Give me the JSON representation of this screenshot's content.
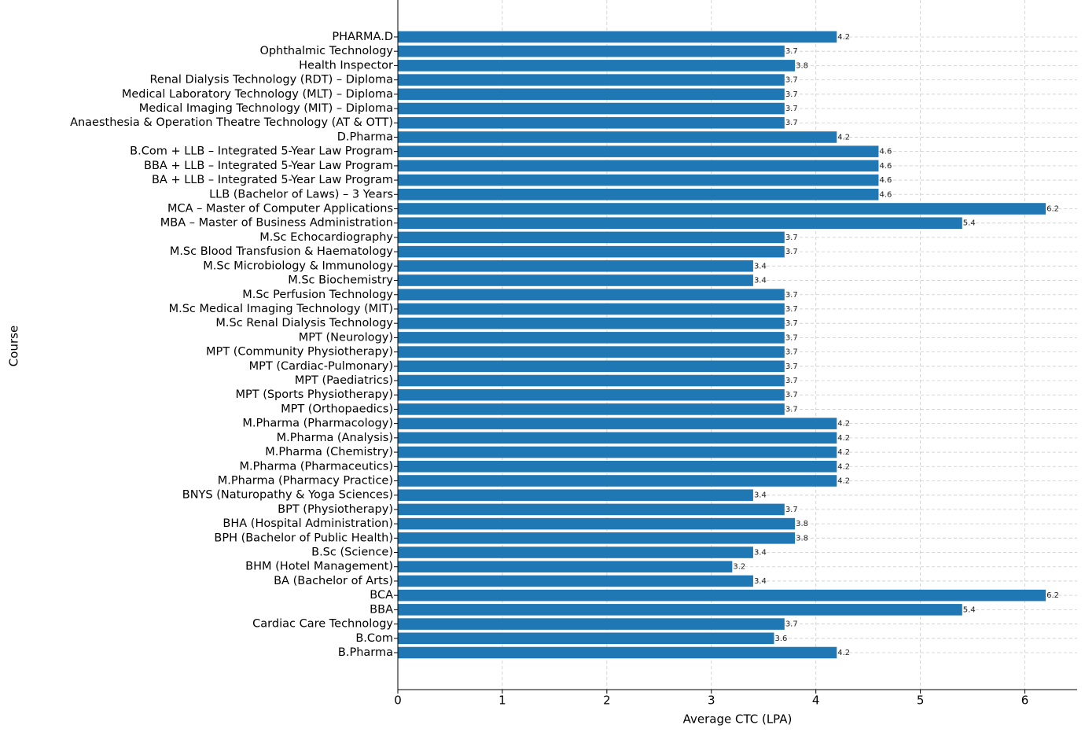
{
  "chart_data": {
    "type": "barh",
    "xlabel": "Average CTC (LPA)",
    "ylabel": "Course",
    "color": "#1f77b4",
    "grid": true,
    "xlim": [
      0,
      6.5
    ],
    "xticks": [
      0,
      1,
      2,
      3,
      4,
      5,
      6
    ],
    "categories": [
      "B.Pharma",
      "B.Com",
      "Cardiac Care Technology",
      "BBA",
      "BCA",
      "BA (Bachelor of Arts)",
      "BHM (Hotel Management)",
      "B.Sc (Science)",
      "BPH (Bachelor of Public Health)",
      "BHA (Hospital Administration)",
      "BPT (Physiotherapy)",
      "BNYS (Naturopathy & Yoga Sciences)",
      "M.Pharma (Pharmacy Practice)",
      "M.Pharma (Pharmaceutics)",
      "M.Pharma (Chemistry)",
      "M.Pharma (Analysis)",
      "M.Pharma (Pharmacology)",
      "MPT (Orthopaedics)",
      "MPT (Sports Physiotherapy)",
      "MPT (Paediatrics)",
      "MPT (Cardiac-Pulmonary)",
      "MPT (Community Physiotherapy)",
      "MPT (Neurology)",
      "M.Sc Renal Dialysis Technology",
      "M.Sc Medical Imaging Technology (MIT)",
      "M.Sc Perfusion Technology",
      "M.Sc Biochemistry",
      "M.Sc Microbiology & Immunology",
      "M.Sc Blood Transfusion & Haematology",
      "M.Sc Echocardiography",
      "MBA – Master of Business Administration",
      "MCA – Master of Computer Applications",
      "LLB (Bachelor of Laws) – 3 Years",
      "BA + LLB – Integrated 5-Year Law Program",
      "BBA + LLB – Integrated 5-Year Law Program",
      "B.Com + LLB – Integrated 5-Year Law Program",
      "D.Pharma",
      "Anaesthesia & Operation Theatre Technology (AT & OTT)",
      "Medical Imaging Technology (MIT) – Diploma",
      "Medical Laboratory Technology (MLT) – Diploma",
      "Renal Dialysis Technology (RDT) – Diploma",
      "Health Inspector",
      "Ophthalmic Technology",
      "PHARMA.D"
    ],
    "values": [
      4.2,
      3.6,
      3.7,
      5.4,
      6.2,
      3.4,
      3.2,
      3.4,
      3.8,
      3.8,
      3.7,
      3.4,
      4.2,
      4.2,
      4.2,
      4.2,
      4.2,
      3.7,
      3.7,
      3.7,
      3.7,
      3.7,
      3.7,
      3.7,
      3.7,
      3.7,
      3.4,
      3.4,
      3.7,
      3.7,
      5.4,
      6.2,
      4.6,
      4.6,
      4.6,
      4.6,
      4.2,
      3.7,
      3.7,
      3.7,
      3.7,
      3.8,
      3.7,
      4.2
    ]
  }
}
